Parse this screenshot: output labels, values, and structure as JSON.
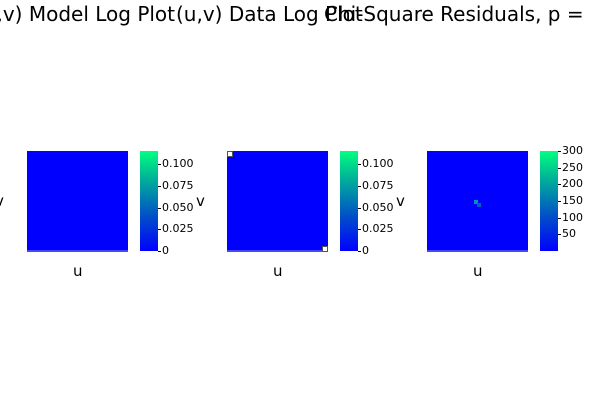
{
  "chart_data": [
    {
      "type": "heatmap",
      "title": "(u,v) Model Log Plot",
      "xlabel": "u",
      "ylabel": "v",
      "colormap": [
        "#0000ff",
        "#00ff80"
      ],
      "colorbar": {
        "range": [
          0,
          0.115
        ],
        "ticks": [
          0,
          0.025,
          0.05,
          0.075,
          0.1
        ],
        "tick_labels": [
          "0",
          "0.025",
          "0.050",
          "0.075",
          "0.100"
        ]
      },
      "values": "uniform minimum (all cells at ~0)"
    },
    {
      "type": "heatmap",
      "title": "(u,v) Data Log Plot",
      "xlabel": "u",
      "ylabel": "v",
      "colormap": [
        "#0000ff",
        "#00ff80"
      ],
      "colorbar": {
        "range": [
          0,
          0.115
        ],
        "ticks": [
          0,
          0.025,
          0.05,
          0.075,
          0.1
        ],
        "tick_labels": [
          "0",
          "0.025",
          "0.050",
          "0.075",
          "0.100"
        ]
      },
      "values": "uniform minimum except isolated nonzero cells at two opposite corners"
    },
    {
      "type": "heatmap",
      "title": "Chi-Square Residuals, p = ",
      "xlabel": "u",
      "ylabel": "v",
      "colormap": [
        "#0000ff",
        "#00ff80"
      ],
      "colorbar": {
        "range": [
          0,
          300
        ],
        "ticks": [
          50,
          100,
          150,
          200,
          250,
          300
        ],
        "tick_labels": [
          "50",
          "100",
          "150",
          "200",
          "250",
          "300"
        ]
      },
      "values": "uniform low values with a small elevated cluster near the center"
    }
  ]
}
